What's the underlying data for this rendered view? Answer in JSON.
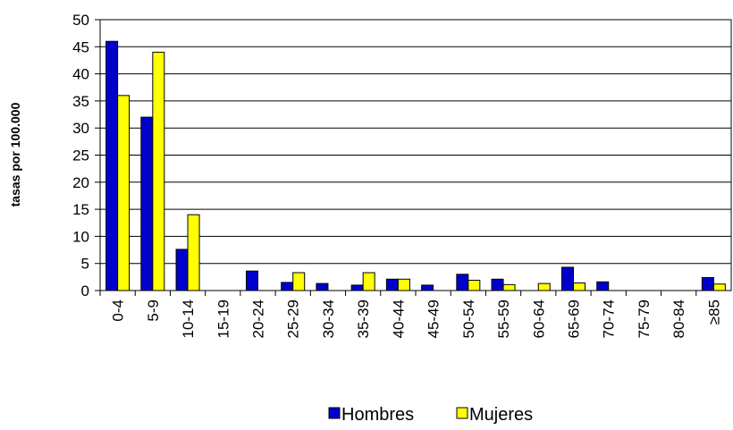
{
  "chart_data": {
    "type": "bar",
    "y_label": "tasas por 100.000",
    "categories": [
      "0-4",
      "5-9",
      "10-14",
      "15-19",
      "20-24",
      "25-29",
      "30-34",
      "35-39",
      "40-44",
      "45-49",
      "50-54",
      "55-59",
      "60-64",
      "65-69",
      "70-74",
      "75-79",
      "80-84",
      "≥85"
    ],
    "series": [
      {
        "name": "Hombres",
        "color": "#0000cc",
        "values": [
          46,
          32,
          7.6,
          0,
          3.6,
          1.5,
          1.3,
          1.0,
          2.1,
          1.0,
          3.0,
          2.1,
          0,
          4.3,
          1.6,
          0,
          0,
          2.4
        ]
      },
      {
        "name": "Mujeres",
        "color": "#ffff00",
        "values": [
          36,
          44,
          14,
          0,
          0,
          3.3,
          0,
          3.3,
          2.1,
          0,
          1.9,
          1.1,
          1.3,
          1.4,
          0,
          0,
          0,
          1.2
        ]
      }
    ],
    "ylim": [
      0,
      50
    ],
    "yticks": [
      0,
      5,
      10,
      15,
      20,
      25,
      30,
      35,
      40,
      45,
      50
    ],
    "grid": true,
    "legend": "bottom"
  }
}
